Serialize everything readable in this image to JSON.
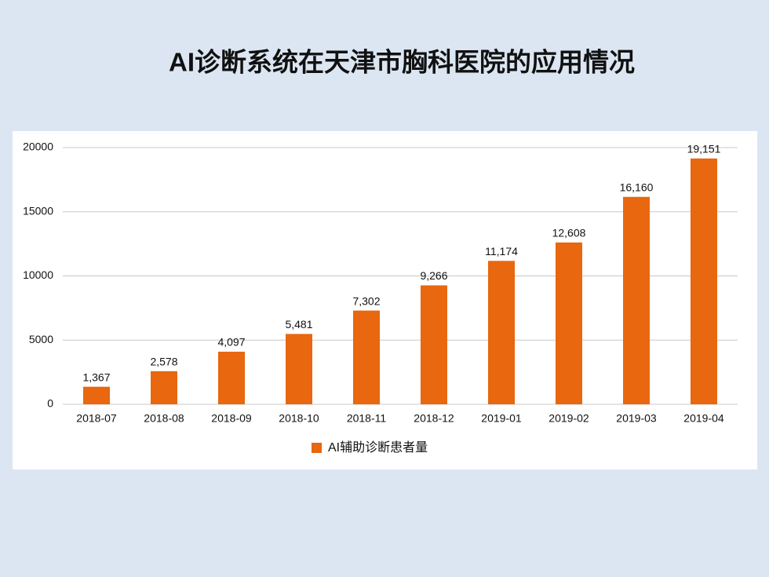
{
  "chart_data": {
    "type": "bar",
    "title": "AI诊断系统在天津市胸科医院的应用情况",
    "categories": [
      "2018-07",
      "2018-08",
      "2018-09",
      "2018-10",
      "2018-11",
      "2018-12",
      "2019-01",
      "2019-02",
      "2019-03",
      "2019-04"
    ],
    "series": [
      {
        "name": "AI辅助诊断患者量",
        "color": "#e8670f",
        "values": [
          1367,
          2578,
          4097,
          5481,
          7302,
          9266,
          11174,
          12608,
          16160,
          19151
        ],
        "value_labels": [
          "1,367",
          "2,578",
          "4,097",
          "5,481",
          "7,302",
          "9,266",
          "11,174",
          "12,608",
          "16,160",
          "19,151"
        ]
      }
    ],
    "ylim": [
      0,
      20000
    ],
    "yticks": [
      0,
      5000,
      10000,
      15000,
      20000
    ],
    "grid": true,
    "legend": "bottom"
  }
}
